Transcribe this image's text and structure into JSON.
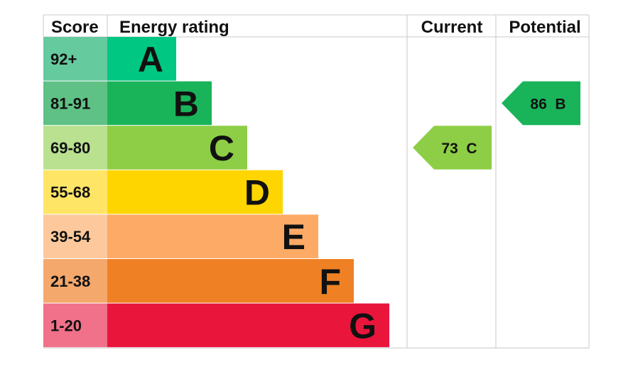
{
  "chart_data": {
    "type": "epc-rating",
    "headers": {
      "score": "Score",
      "rating": "Energy rating",
      "current": "Current",
      "potential": "Potential"
    },
    "bands": [
      {
        "score": "92+",
        "letter": "A",
        "color": "#00c781",
        "light": "#66ca9f"
      },
      {
        "score": "81-91",
        "letter": "B",
        "color": "#19b459",
        "light": "#5fc185"
      },
      {
        "score": "69-80",
        "letter": "C",
        "color": "#8dce46",
        "light": "#b9e18f"
      },
      {
        "score": "55-68",
        "letter": "D",
        "color": "#ffd500",
        "light": "#ffe566"
      },
      {
        "score": "39-54",
        "letter": "E",
        "color": "#fcaa65",
        "light": "#fdc99c"
      },
      {
        "score": "21-38",
        "letter": "F",
        "color": "#ef8023",
        "light": "#f4a86c"
      },
      {
        "score": "1-20",
        "letter": "G",
        "color": "#e9153b",
        "light": "#f07189"
      }
    ],
    "current": {
      "value": 73,
      "letter": "C",
      "label": "73  C",
      "color": "#8dce46"
    },
    "potential": {
      "value": 86,
      "letter": "B",
      "label": "86  B",
      "color": "#19b459"
    }
  }
}
